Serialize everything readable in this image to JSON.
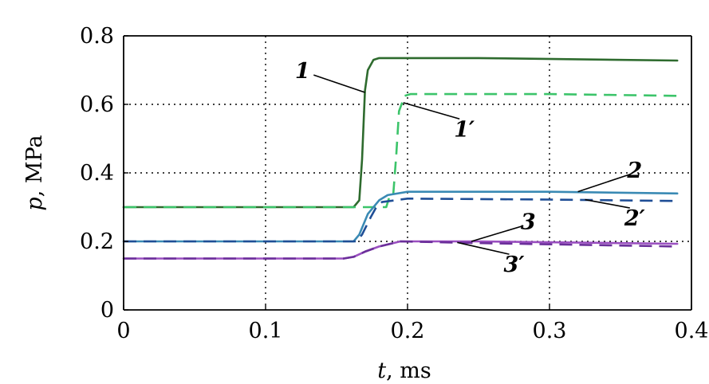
{
  "chart_data": {
    "type": "line",
    "xlabel_var": "t",
    "xlabel_unit": ", ms",
    "ylabel_var": "p",
    "ylabel_unit": ", MPa",
    "xlim": [
      0,
      0.4
    ],
    "ylim": [
      0,
      0.8
    ],
    "x_ticks": [
      "0",
      "0.1",
      "0.2",
      "0.3",
      "0.4"
    ],
    "y_ticks": [
      "0",
      "0.2",
      "0.4",
      "0.6",
      "0.8"
    ],
    "grid": "dotted",
    "series": [
      {
        "name": "1",
        "color": "#2e6b2e",
        "dash": false,
        "points": [
          [
            0,
            0.3
          ],
          [
            0.162,
            0.3
          ],
          [
            0.166,
            0.32
          ],
          [
            0.168,
            0.44
          ],
          [
            0.17,
            0.64
          ],
          [
            0.172,
            0.7
          ],
          [
            0.176,
            0.73
          ],
          [
            0.18,
            0.735
          ],
          [
            0.25,
            0.735
          ],
          [
            0.39,
            0.728
          ]
        ]
      },
      {
        "name": "1'",
        "color": "#3cc46a",
        "dash": true,
        "points": [
          [
            0,
            0.3
          ],
          [
            0.185,
            0.3
          ],
          [
            0.188,
            0.34
          ],
          [
            0.19,
            0.34
          ],
          [
            0.192,
            0.45
          ],
          [
            0.194,
            0.58
          ],
          [
            0.198,
            0.625
          ],
          [
            0.202,
            0.63
          ],
          [
            0.3,
            0.63
          ],
          [
            0.39,
            0.625
          ]
        ]
      },
      {
        "name": "2",
        "color": "#3a8ab4",
        "dash": false,
        "points": [
          [
            0,
            0.2
          ],
          [
            0.162,
            0.2
          ],
          [
            0.166,
            0.22
          ],
          [
            0.172,
            0.28
          ],
          [
            0.18,
            0.32
          ],
          [
            0.186,
            0.335
          ],
          [
            0.2,
            0.345
          ],
          [
            0.3,
            0.345
          ],
          [
            0.39,
            0.34
          ]
        ]
      },
      {
        "name": "2'",
        "color": "#1f4e96",
        "dash": true,
        "points": [
          [
            0,
            0.2
          ],
          [
            0.164,
            0.2
          ],
          [
            0.168,
            0.22
          ],
          [
            0.174,
            0.27
          ],
          [
            0.178,
            0.3
          ],
          [
            0.182,
            0.315
          ],
          [
            0.2,
            0.325
          ],
          [
            0.3,
            0.322
          ],
          [
            0.39,
            0.318
          ]
        ]
      },
      {
        "name": "3",
        "color": "#9a4fc0",
        "dash": false,
        "points": [
          [
            0,
            0.15
          ],
          [
            0.155,
            0.15
          ],
          [
            0.162,
            0.155
          ],
          [
            0.17,
            0.17
          ],
          [
            0.18,
            0.185
          ],
          [
            0.195,
            0.2
          ],
          [
            0.25,
            0.2
          ],
          [
            0.39,
            0.193
          ]
        ]
      },
      {
        "name": "3'",
        "color": "#6b2f9a",
        "dash": true,
        "points": [
          [
            0,
            0.15
          ],
          [
            0.155,
            0.15
          ],
          [
            0.162,
            0.155
          ],
          [
            0.17,
            0.17
          ],
          [
            0.18,
            0.185
          ],
          [
            0.195,
            0.2
          ],
          [
            0.25,
            0.195
          ],
          [
            0.39,
            0.185
          ]
        ]
      }
    ],
    "curve_labels": [
      {
        "text": "1",
        "series": "1",
        "at": [
          0.126,
          0.695
        ],
        "anchor": [
          0.17,
          0.635
        ]
      },
      {
        "text": "1′",
        "series": "1'",
        "at": [
          0.24,
          0.525
        ],
        "anchor": [
          0.197,
          0.605
        ]
      },
      {
        "text": "2",
        "series": "2",
        "at": [
          0.36,
          0.405
        ],
        "anchor": [
          0.32,
          0.345
        ]
      },
      {
        "text": "2′",
        "series": "2'",
        "at": [
          0.36,
          0.265
        ],
        "anchor": [
          0.325,
          0.322
        ]
      },
      {
        "text": "3",
        "series": "3",
        "at": [
          0.285,
          0.255
        ],
        "anchor": [
          0.245,
          0.2
        ]
      },
      {
        "text": "3′",
        "series": "3'",
        "at": [
          0.275,
          0.13
        ],
        "anchor": [
          0.235,
          0.197
        ]
      }
    ]
  }
}
